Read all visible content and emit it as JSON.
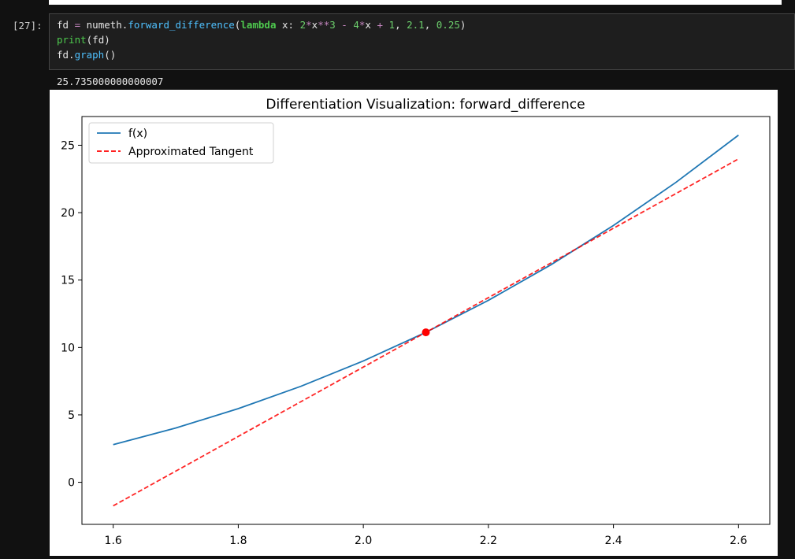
{
  "cell": {
    "prompt": "[27]:",
    "code_lines": [
      [
        "fd",
        " = ",
        "numeth",
        ".",
        "forward_difference",
        "(",
        "lambda",
        " x: ",
        "2",
        "*",
        "x",
        "**",
        "3",
        " - ",
        "4",
        "*",
        "x",
        " + ",
        "1",
        ", ",
        "2.1",
        ", ",
        "0.25",
        ")"
      ],
      [
        "print",
        "(fd)"
      ],
      [
        "fd.",
        "graph",
        "()"
      ]
    ],
    "output": "25.735000000000007"
  },
  "chart_data": {
    "type": "line",
    "title": "Differentiation Visualization: forward_difference",
    "x": [
      1.6,
      1.7,
      1.8,
      1.9,
      2.0,
      2.1,
      2.2,
      2.3,
      2.4,
      2.5,
      2.6
    ],
    "series": [
      {
        "name": "f(x)",
        "color": "#1f77b4",
        "dashed": false,
        "values": [
          2.792,
          4.026,
          5.464,
          7.118,
          9,
          11.122,
          13.496,
          16.134,
          19.048,
          22.25,
          25.752
        ]
      },
      {
        "name": "Approximated Tangent",
        "color": "#ff0000",
        "dashed": true,
        "values": [
          -1.7455,
          0.828,
          3.4015,
          5.975,
          8.5485,
          11.122,
          13.6955,
          16.269,
          18.8425,
          21.416,
          23.9895
        ]
      }
    ],
    "point": {
      "x": 2.1,
      "y": 11.122,
      "color": "#ff0000"
    },
    "xlim": [
      1.55,
      2.65
    ],
    "ylim": [
      -3.12,
      27.13
    ],
    "xticks": [
      {
        "value": 1.6,
        "label": "1.6"
      },
      {
        "value": 1.8,
        "label": "1.8"
      },
      {
        "value": 2.0,
        "label": "2.0"
      },
      {
        "value": 2.2,
        "label": "2.2"
      },
      {
        "value": 2.4,
        "label": "2.4"
      },
      {
        "value": 2.6,
        "label": "2.6"
      }
    ],
    "yticks": [
      0,
      5,
      10,
      15,
      20,
      25
    ],
    "legend": "upper left"
  }
}
